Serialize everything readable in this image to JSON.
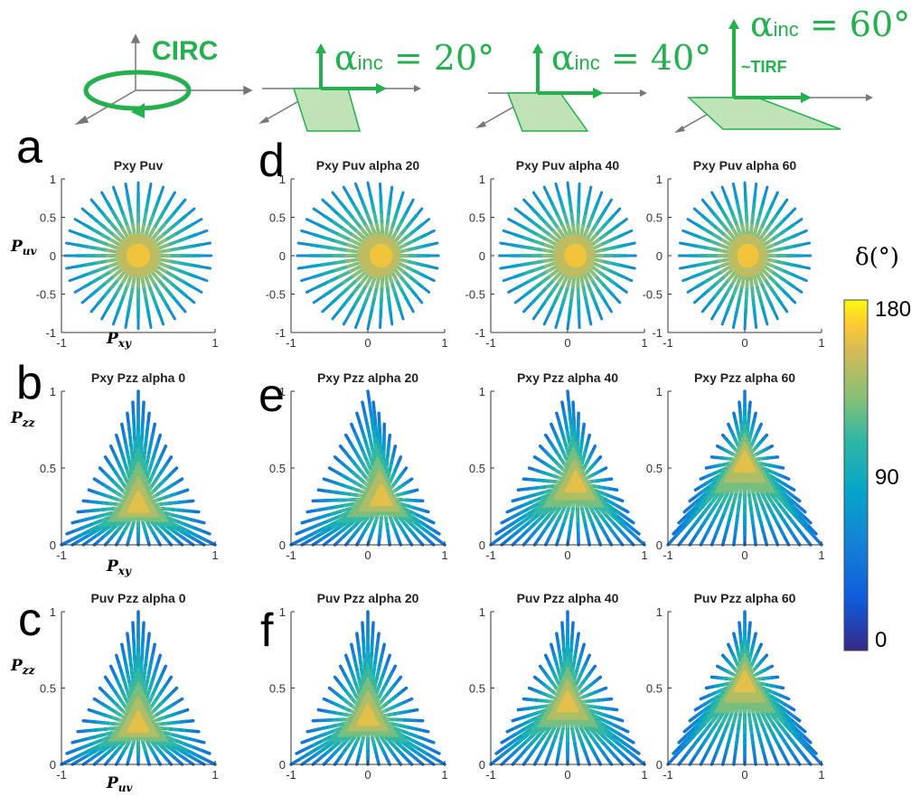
{
  "figure": {
    "panel_letters": [
      "a",
      "b",
      "c",
      "d",
      "e",
      "f"
    ],
    "illustrations": [
      {
        "id": "circ",
        "label": "CIRC"
      },
      {
        "id": "a20",
        "alpha_symbol": "α",
        "sub": "inc",
        "rest": " = 20°"
      },
      {
        "id": "a40",
        "alpha_symbol": "α",
        "sub": "inc",
        "rest": " = 40°"
      },
      {
        "id": "a60",
        "alpha_symbol": "α",
        "sub": "inc",
        "rest": " = 60°",
        "note": "~TIRF"
      }
    ],
    "accent_color": "#22b14c",
    "colorbar": {
      "title": "δ(°)",
      "ticks": [
        "180",
        "90",
        "0"
      ],
      "range": [
        0,
        180
      ],
      "colormap": "parula"
    }
  },
  "chart_data": [
    {
      "type": "scatter",
      "panel": "a",
      "title": "Pxy Puv",
      "shape": "disc",
      "xlabel": "P_xy",
      "ylabel": "P_uv",
      "xlim": [
        -1,
        1
      ],
      "ylim": [
        -1,
        1
      ],
      "xticks": [
        "-1",
        "1"
      ],
      "yticks": [
        "1",
        "0.5",
        "0",
        "-0.5",
        "-1"
      ],
      "center": [
        0,
        0
      ],
      "alpha_inc_deg": 0
    },
    {
      "type": "scatter",
      "panel": "b",
      "title": "Pxy Pzz alpha 0",
      "shape": "triangle",
      "xlabel": "P_xy",
      "ylabel": "P_zz",
      "xlim": [
        -1,
        1
      ],
      "ylim": [
        0,
        1
      ],
      "xticks": [
        "-1",
        "1"
      ],
      "yticks": [
        "1",
        "0.5",
        "0"
      ],
      "center": [
        0,
        0.25
      ],
      "alpha_inc_deg": 0
    },
    {
      "type": "scatter",
      "panel": "c",
      "title": "Puv Pzz alpha 0",
      "shape": "triangle",
      "xlabel": "P_uv",
      "ylabel": "P_zz",
      "xlim": [
        -1,
        1
      ],
      "ylim": [
        0,
        1
      ],
      "xticks": [
        "-1",
        "1"
      ],
      "yticks": [
        "1",
        "0.5",
        "0"
      ],
      "center": [
        0,
        0.25
      ],
      "alpha_inc_deg": 0
    },
    {
      "type": "scatter",
      "panel": "d1",
      "title": "Pxy Puv alpha 20",
      "shape": "disc",
      "xlabel": "",
      "ylabel": "",
      "xlim": [
        -1,
        1
      ],
      "ylim": [
        -1,
        1
      ],
      "xticks": [
        "-1",
        "0",
        "1"
      ],
      "yticks": [
        "1",
        "0.5",
        "0",
        "-0.5",
        "-1"
      ],
      "center": [
        0.2,
        0
      ],
      "alpha_inc_deg": 20
    },
    {
      "type": "scatter",
      "panel": "d2",
      "title": "Pxy Puv alpha 40",
      "shape": "disc",
      "xlabel": "",
      "ylabel": "",
      "xlim": [
        -1,
        1
      ],
      "ylim": [
        -1,
        1
      ],
      "xticks": [
        "-1",
        "0",
        "1"
      ],
      "yticks": [
        "1",
        "0.5",
        "0",
        "-0.5",
        "-1"
      ],
      "center": [
        0.12,
        0
      ],
      "alpha_inc_deg": 40
    },
    {
      "type": "scatter",
      "panel": "d3",
      "title": "Pxy Puv alpha 60",
      "shape": "disc",
      "xlabel": "",
      "ylabel": "",
      "xlim": [
        -1,
        1
      ],
      "ylim": [
        -1,
        1
      ],
      "xticks": [
        "-1",
        "0",
        "1"
      ],
      "yticks": [
        "1",
        "0.5",
        "0",
        "-0.5",
        "-1"
      ],
      "center": [
        0.05,
        0
      ],
      "alpha_inc_deg": 60
    },
    {
      "type": "scatter",
      "panel": "e1",
      "title": "Pxy Pzz alpha 20",
      "shape": "triangle",
      "xlabel": "",
      "ylabel": "",
      "xlim": [
        -1,
        1
      ],
      "ylim": [
        0,
        1
      ],
      "xticks": [
        "-1",
        "0",
        "1"
      ],
      "yticks": [
        "1",
        "0.5",
        "0"
      ],
      "center": [
        0.2,
        0.3
      ],
      "alpha_inc_deg": 20
    },
    {
      "type": "scatter",
      "panel": "e2",
      "title": "Pxy Pzz alpha 40",
      "shape": "triangle",
      "xlabel": "",
      "ylabel": "",
      "xlim": [
        -1,
        1
      ],
      "ylim": [
        0,
        1
      ],
      "xticks": [
        "-1",
        "0",
        "1"
      ],
      "yticks": [
        "1",
        "0.5",
        "0"
      ],
      "center": [
        0.12,
        0.4
      ],
      "alpha_inc_deg": 40
    },
    {
      "type": "scatter",
      "panel": "e3",
      "title": "Pxy Pzz alpha 60",
      "shape": "triangle",
      "xlabel": "",
      "ylabel": "",
      "xlim": [
        -1,
        1
      ],
      "ylim": [
        0,
        1
      ],
      "xticks": [
        "-1",
        "0",
        "1"
      ],
      "yticks": [
        "1",
        "0.5",
        "0"
      ],
      "center": [
        0,
        0.55
      ],
      "alpha_inc_deg": 60
    },
    {
      "type": "scatter",
      "panel": "f1",
      "title": "Puv Pzz alpha 20",
      "shape": "triangle",
      "xlabel": "",
      "ylabel": "",
      "xlim": [
        -1,
        1
      ],
      "ylim": [
        0,
        1
      ],
      "xticks": [
        "-1",
        "0",
        "1"
      ],
      "yticks": [
        "1",
        "0.5",
        "0"
      ],
      "center": [
        0,
        0.3
      ],
      "alpha_inc_deg": 20
    },
    {
      "type": "scatter",
      "panel": "f2",
      "title": "Puv Pzz alpha 40",
      "shape": "triangle",
      "xlabel": "",
      "ylabel": "",
      "xlim": [
        -1,
        1
      ],
      "ylim": [
        0,
        1
      ],
      "xticks": [
        "-1",
        "0",
        "1"
      ],
      "yticks": [
        "1",
        "0.5",
        "0"
      ],
      "center": [
        0,
        0.4
      ],
      "alpha_inc_deg": 40
    },
    {
      "type": "scatter",
      "panel": "f3",
      "title": "Puv Pzz alpha 60",
      "shape": "triangle",
      "xlabel": "",
      "ylabel": "",
      "xlim": [
        -1,
        1
      ],
      "ylim": [
        0,
        1
      ],
      "xticks": [
        "-1",
        "0",
        "1"
      ],
      "yticks": [
        "1",
        "0.5",
        "0"
      ],
      "center": [
        0,
        0.55
      ],
      "alpha_inc_deg": 60
    }
  ]
}
